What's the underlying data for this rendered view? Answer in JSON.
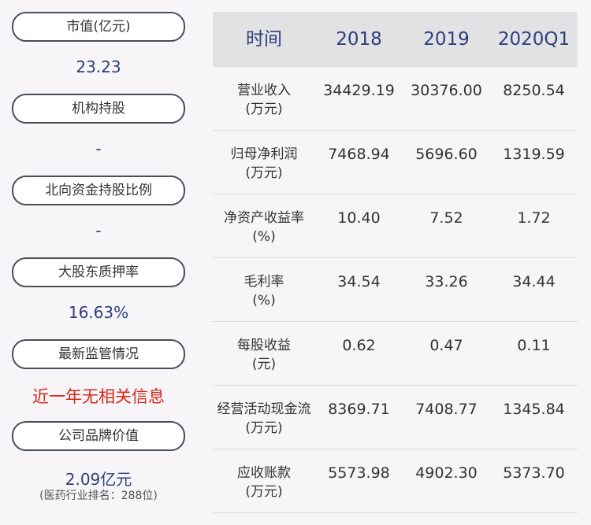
{
  "left_panel": [
    {
      "label": "市值(亿元)",
      "value": "23.23",
      "style": "normal"
    },
    {
      "label": "机构持股",
      "value": "-",
      "style": "normal"
    },
    {
      "label": "北向资金持股比例",
      "value": "-",
      "style": "normal"
    },
    {
      "label": "大股东质押率",
      "value": "16.63%",
      "style": "normal"
    },
    {
      "label": "最新监管情况",
      "value": "近一年无相关信息",
      "style": "red"
    },
    {
      "label": "公司品牌价值",
      "value": "2.09亿元",
      "sub": "(医药行业排名：288位)",
      "style": "normal"
    }
  ],
  "table": {
    "headers": [
      "时间",
      "2018",
      "2019",
      "2020Q1"
    ],
    "rows": [
      {
        "name": "营业收入",
        "unit": "(万元)",
        "values": [
          "34429.19",
          "30376.00",
          "8250.54"
        ]
      },
      {
        "name": "归母净利润",
        "unit": "(万元)",
        "values": [
          "7468.94",
          "5696.60",
          "1319.59"
        ]
      },
      {
        "name": "净资产收益率",
        "unit": "(%)",
        "values": [
          "10.40",
          "7.52",
          "1.72"
        ]
      },
      {
        "name": "毛利率",
        "unit": "(%)",
        "values": [
          "34.54",
          "33.26",
          "34.44"
        ]
      },
      {
        "name": "每股收益",
        "unit": "(元)",
        "values": [
          "0.62",
          "0.47",
          "0.11"
        ]
      },
      {
        "name": "经营活动现金流",
        "unit": "(万元)",
        "values": [
          "8369.71",
          "7408.77",
          "1345.84"
        ]
      },
      {
        "name": "应收账款",
        "unit": "(万元)",
        "values": [
          "5573.98",
          "4902.30",
          "5373.70"
        ]
      }
    ]
  },
  "colors": {
    "value_blue": "#2d3e7c",
    "alert_red": "#d9261c",
    "header_bg": "#e2e2e4",
    "page_bg": "#f7f5f7"
  }
}
